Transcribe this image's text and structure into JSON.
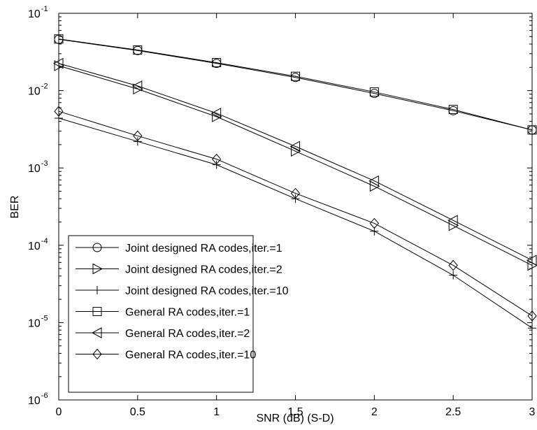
{
  "chart_data": {
    "type": "line",
    "title": "",
    "xlabel": "SNR (dB) (S-D)",
    "ylabel": "BER",
    "xlim": [
      0,
      3
    ],
    "ylim": [
      1e-06,
      0.1
    ],
    "yscale": "log",
    "grid": false,
    "legend_position": "bottom-left",
    "x_ticks": [
      {
        "value": 0,
        "label": "0"
      },
      {
        "value": 0.5,
        "label": "0.5"
      },
      {
        "value": 1,
        "label": "1"
      },
      {
        "value": 1.5,
        "label": "1.5"
      },
      {
        "value": 2,
        "label": "2"
      },
      {
        "value": 2.5,
        "label": "2.5"
      },
      {
        "value": 3,
        "label": "3"
      }
    ],
    "y_ticks": [
      {
        "exp": -6,
        "base": "10",
        "sup": "-6"
      },
      {
        "exp": -5,
        "base": "10",
        "sup": "-5"
      },
      {
        "exp": -4,
        "base": "10",
        "sup": "-4"
      },
      {
        "exp": -3,
        "base": "10",
        "sup": "-3"
      },
      {
        "exp": -2,
        "base": "10",
        "sup": "-2"
      },
      {
        "exp": -1,
        "base": "10",
        "sup": "-1"
      }
    ],
    "x": [
      0,
      0.5,
      1,
      1.5,
      2,
      2.5,
      3
    ],
    "series": [
      {
        "name": "Joint designed RA codes,iter.=1",
        "marker": "circle",
        "values": [
          0.046,
          0.033,
          0.0225,
          0.0148,
          0.0092,
          0.0055,
          0.0031
        ]
      },
      {
        "name": "Joint designed RA codes,iter.=2",
        "marker": "triangle-right",
        "values": [
          0.021,
          0.0105,
          0.0046,
          0.00165,
          0.00058,
          0.00018,
          5.5e-05
        ]
      },
      {
        "name": "Joint designed RA codes,iter.=10",
        "marker": "plus",
        "values": [
          0.0044,
          0.0022,
          0.0011,
          0.0004,
          0.000152,
          4.1e-05,
          8.5e-06
        ]
      },
      {
        "name": "General RA codes,iter.=1",
        "marker": "square",
        "values": [
          0.0465,
          0.0335,
          0.023,
          0.0153,
          0.0096,
          0.0057,
          0.0031
        ]
      },
      {
        "name": "General RA codes,iter.=2",
        "marker": "triangle-left",
        "values": [
          0.0225,
          0.0115,
          0.0051,
          0.0019,
          0.00068,
          0.00021,
          6.4e-05
        ]
      },
      {
        "name": "General RA codes,iter.=10",
        "marker": "diamond",
        "values": [
          0.0054,
          0.0026,
          0.0013,
          0.00047,
          0.000192,
          5.5e-05,
          1.22e-05
        ]
      }
    ]
  }
}
